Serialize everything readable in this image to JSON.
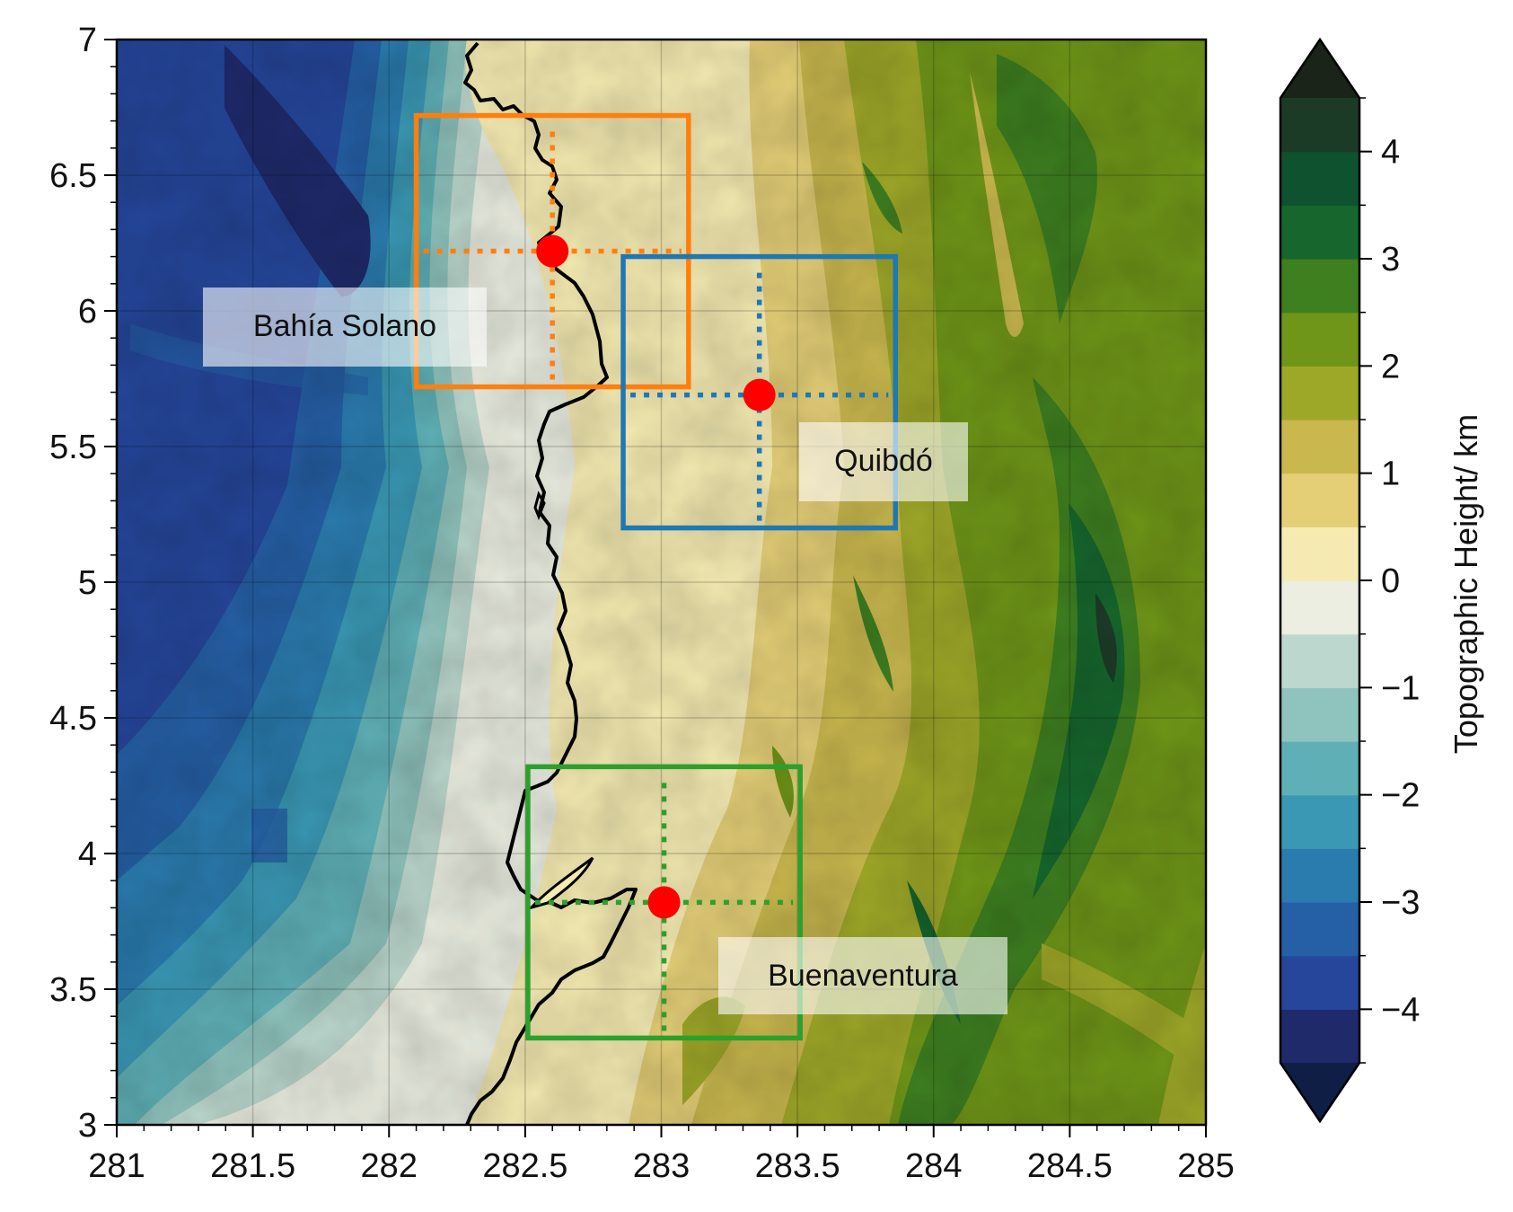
{
  "chart_data": {
    "type": "heatmap",
    "title": "",
    "xlabel": "",
    "ylabel": "",
    "xlim": [
      281,
      285
    ],
    "ylim": [
      3,
      7
    ],
    "x_ticks": [
      "281",
      "281.5",
      "282",
      "282.5",
      "283",
      "283.5",
      "284",
      "284.5",
      "285"
    ],
    "y_ticks": [
      "3",
      "3.5",
      "4",
      "4.5",
      "5",
      "5.5",
      "6",
      "6.5",
      "7"
    ],
    "grid": true,
    "colorbar": {
      "label": "Topographic Height/ km",
      "range": [
        -4.5,
        4.5
      ],
      "step": 0.5,
      "extend": "both",
      "ticks": [
        "−4",
        "−3",
        "−2",
        "−1",
        "0",
        "1",
        "2",
        "3",
        "4"
      ],
      "colors": [
        "#1f2a6b",
        "#25469a",
        "#255fa5",
        "#2a7bae",
        "#3a98b4",
        "#5fb0b6",
        "#8fc3bd",
        "#bcd8ce",
        "#ebeee1",
        "#f5ebb2",
        "#e4cf77",
        "#c9b84e",
        "#9ea828",
        "#6f9618",
        "#3e7f20",
        "#16662d",
        "#0f5230",
        "#1c3b27"
      ],
      "under_color": "#0f1e45",
      "over_color": "#1a2418"
    },
    "stations": [
      {
        "name": "Bahía Solano",
        "lon": 282.6,
        "lat": 6.22,
        "box_lon": [
          282.1,
          283.1
        ],
        "box_lat": [
          5.72,
          6.72
        ],
        "color": "#ff7f0e"
      },
      {
        "name": "Quibdó",
        "lon": 283.36,
        "lat": 5.69,
        "box_lon": [
          282.86,
          283.86
        ],
        "box_lat": [
          5.2,
          6.2
        ],
        "color": "#1f77b4"
      },
      {
        "name": "Buenaventura",
        "lon": 283.01,
        "lat": 3.82,
        "box_lon": [
          282.51,
          283.51
        ],
        "box_lat": [
          3.32,
          4.32
        ],
        "color": "#2ca02c"
      }
    ],
    "marker_color": "#ff0000"
  }
}
